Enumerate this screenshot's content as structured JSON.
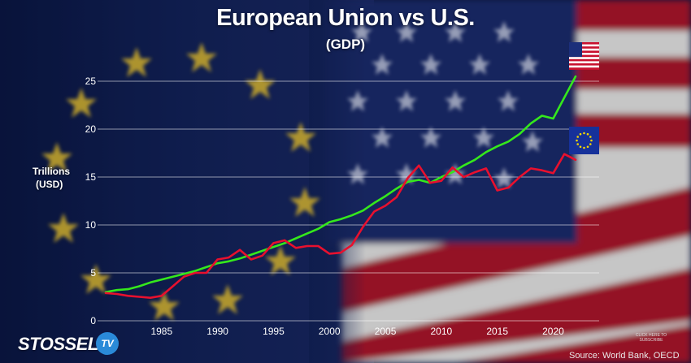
{
  "title": "European Union vs U.S.",
  "subtitle": "(GDP)",
  "ylabel_line1": "Trillions",
  "ylabel_line2": "(USD)",
  "source": "Source: World Bank, OECD",
  "logo_text": "STOSSEL",
  "logo_badge": "TV",
  "cta_text": "CLICK HERE TO SUBSCRIBE",
  "colors": {
    "us_line": "#35e81c",
    "eu_line": "#e8102e",
    "grid": "#ffffff"
  },
  "chart_data": {
    "type": "line",
    "title": "European Union vs U.S.",
    "subtitle": "(GDP)",
    "ylabel": "Trillions (USD)",
    "xlabel": "",
    "xlim": [
      1980,
      2022
    ],
    "ylim": [
      0,
      26
    ],
    "grid": "horizontal",
    "x_ticks": [
      1985,
      1990,
      1995,
      2000,
      2005,
      2010,
      2015,
      2020
    ],
    "y_ticks": [
      0,
      5,
      10,
      15,
      20,
      25
    ],
    "series": [
      {
        "name": "",
        "flag": "us-flag",
        "color": "#35e81c",
        "points": [
          [
            1980,
            3.0
          ],
          [
            1981,
            3.2
          ],
          [
            1982,
            3.3
          ],
          [
            1983,
            3.6
          ],
          [
            1984,
            4.0
          ],
          [
            1985,
            4.3
          ],
          [
            1986,
            4.6
          ],
          [
            1987,
            4.9
          ],
          [
            1988,
            5.2
          ],
          [
            1989,
            5.6
          ],
          [
            1990,
            6.0
          ],
          [
            1991,
            6.2
          ],
          [
            1992,
            6.5
          ],
          [
            1993,
            6.9
          ],
          [
            1994,
            7.3
          ],
          [
            1995,
            7.7
          ],
          [
            1996,
            8.1
          ],
          [
            1997,
            8.6
          ],
          [
            1998,
            9.1
          ],
          [
            1999,
            9.6
          ],
          [
            2000,
            10.3
          ],
          [
            2001,
            10.6
          ],
          [
            2002,
            11.0
          ],
          [
            2003,
            11.5
          ],
          [
            2004,
            12.3
          ],
          [
            2005,
            13.0
          ],
          [
            2006,
            13.8
          ],
          [
            2007,
            14.5
          ],
          [
            2008,
            14.7
          ],
          [
            2009,
            14.4
          ],
          [
            2010,
            15.0
          ],
          [
            2011,
            15.5
          ],
          [
            2012,
            16.2
          ],
          [
            2013,
            16.8
          ],
          [
            2014,
            17.6
          ],
          [
            2015,
            18.2
          ],
          [
            2016,
            18.7
          ],
          [
            2017,
            19.5
          ],
          [
            2018,
            20.6
          ],
          [
            2019,
            21.4
          ],
          [
            2020,
            21.1
          ],
          [
            2021,
            23.3
          ],
          [
            2022,
            25.5
          ]
        ]
      },
      {
        "name": "",
        "flag": "eu-flag",
        "color": "#e8102e",
        "points": [
          [
            1980,
            2.9
          ],
          [
            1981,
            2.8
          ],
          [
            1982,
            2.6
          ],
          [
            1983,
            2.5
          ],
          [
            1984,
            2.4
          ],
          [
            1985,
            2.6
          ],
          [
            1986,
            3.6
          ],
          [
            1987,
            4.6
          ],
          [
            1988,
            5.0
          ],
          [
            1989,
            5.0
          ],
          [
            1990,
            6.4
          ],
          [
            1991,
            6.6
          ],
          [
            1992,
            7.4
          ],
          [
            1993,
            6.4
          ],
          [
            1994,
            6.8
          ],
          [
            1995,
            8.1
          ],
          [
            1996,
            8.4
          ],
          [
            1997,
            7.6
          ],
          [
            1998,
            7.8
          ],
          [
            1999,
            7.8
          ],
          [
            2000,
            7.0
          ],
          [
            2001,
            7.1
          ],
          [
            2002,
            7.9
          ],
          [
            2003,
            9.8
          ],
          [
            2004,
            11.4
          ],
          [
            2005,
            12.0
          ],
          [
            2006,
            12.9
          ],
          [
            2007,
            14.9
          ],
          [
            2008,
            16.2
          ],
          [
            2009,
            14.4
          ],
          [
            2010,
            14.6
          ],
          [
            2011,
            16.0
          ],
          [
            2012,
            15.0
          ],
          [
            2013,
            15.5
          ],
          [
            2014,
            15.9
          ],
          [
            2015,
            13.6
          ],
          [
            2016,
            13.9
          ],
          [
            2017,
            15.0
          ],
          [
            2018,
            15.9
          ],
          [
            2019,
            15.7
          ],
          [
            2020,
            15.4
          ],
          [
            2021,
            17.4
          ],
          [
            2022,
            16.8
          ]
        ]
      }
    ]
  }
}
